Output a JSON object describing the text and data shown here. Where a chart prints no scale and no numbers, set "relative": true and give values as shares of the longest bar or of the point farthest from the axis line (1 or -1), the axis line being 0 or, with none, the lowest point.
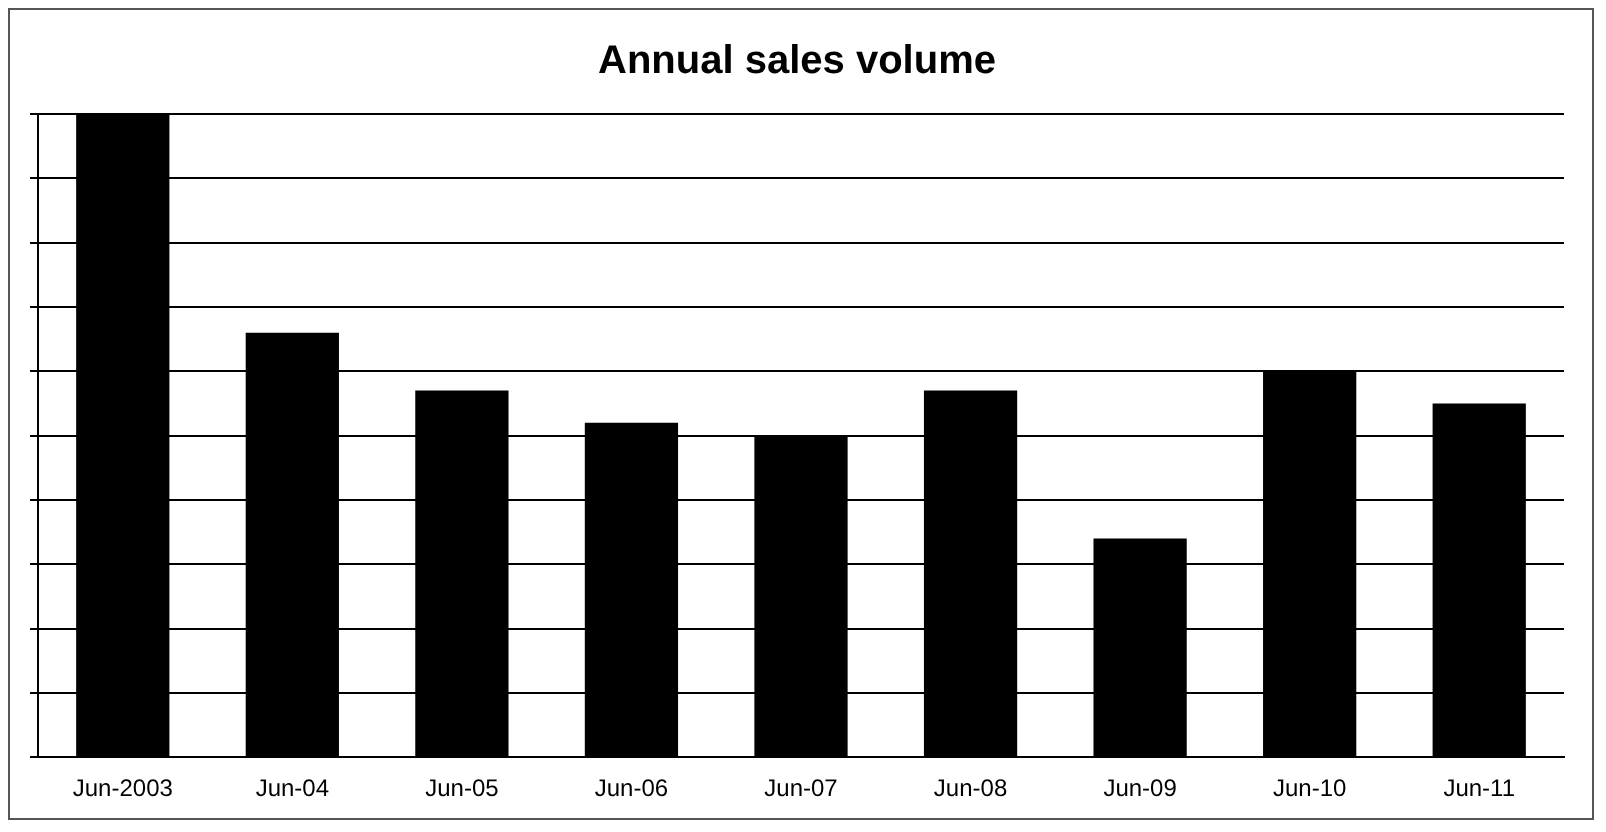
{
  "chart_data": {
    "type": "bar",
    "title": "Annual sales volume",
    "categories": [
      "Jun-2003",
      "Jun-04",
      "Jun-05",
      "Jun-06",
      "Jun-07",
      "Jun-08",
      "Jun-09",
      "Jun-10",
      "Jun-11"
    ],
    "values": [
      1,
      0.66,
      0.57,
      0.52,
      0.5,
      0.57,
      0.34,
      0.6,
      0.55
    ],
    "color": "#000000",
    "relative": true,
    "grid": "y",
    "legend": false
  }
}
